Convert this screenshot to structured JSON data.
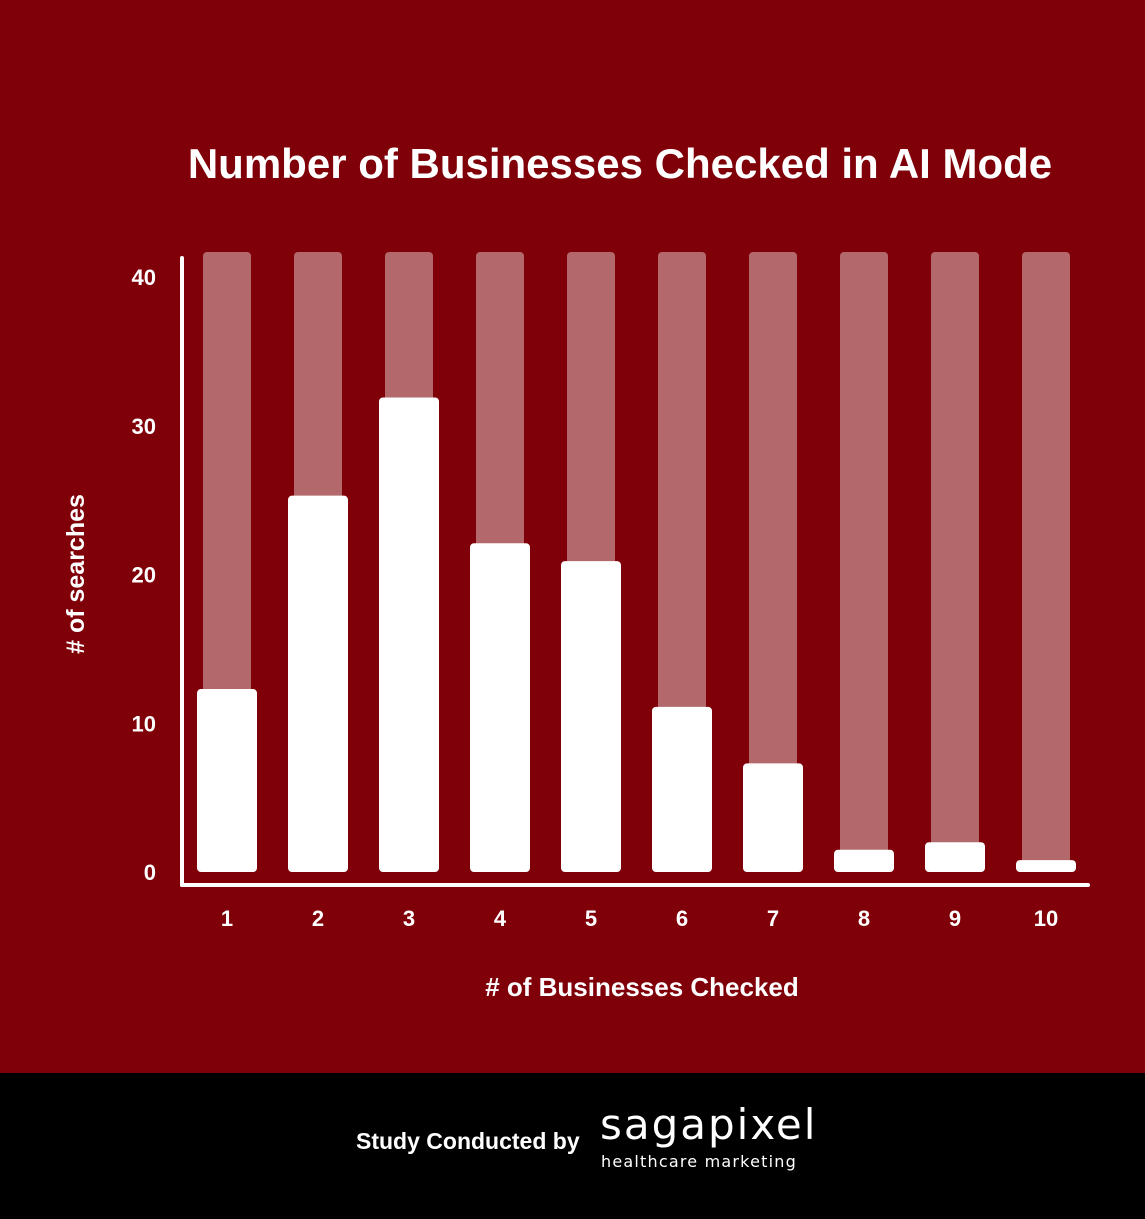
{
  "chart_data": {
    "type": "bar",
    "title": "Number of Businesses Checked in AI Mode",
    "xlabel": "# of Businesses Checked",
    "ylabel": "# of searches",
    "categories": [
      "1",
      "2",
      "3",
      "4",
      "5",
      "6",
      "7",
      "8",
      "9",
      "10"
    ],
    "values": [
      12.3,
      25.3,
      31.9,
      22.1,
      20.9,
      11.1,
      7.3,
      1.5,
      2.0,
      0.8
    ],
    "yticks": [
      "0",
      "10",
      "20",
      "30",
      "40"
    ],
    "ylim": [
      0,
      40
    ],
    "grid": false,
    "legend": "none",
    "colors": {
      "background": "#7f0008",
      "bar": "#ffffff",
      "bar_track": "#b3686b",
      "axis": "#ffffff",
      "text": "#ffffff"
    }
  },
  "footer": {
    "label": "Study Conducted by",
    "brand_name": "sagapixel",
    "brand_tagline": "healthcare marketing"
  }
}
